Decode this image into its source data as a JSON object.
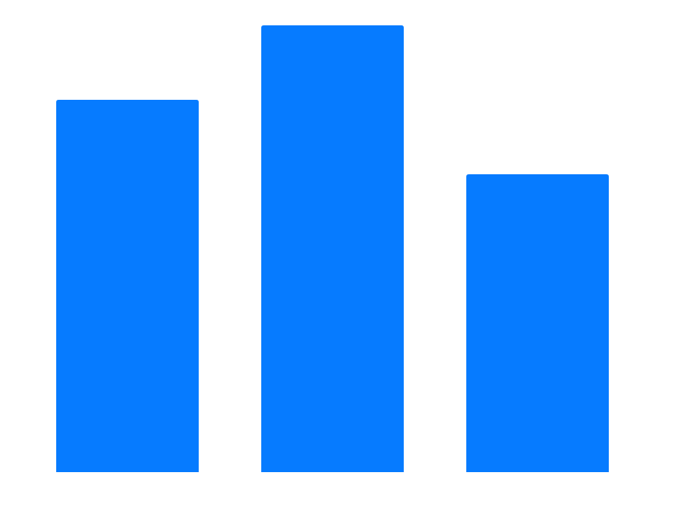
{
  "chart_data": {
    "type": "bar",
    "categories": [
      "",
      "",
      ""
    ],
    "values": [
      5,
      6,
      4
    ],
    "ylim": [
      0,
      6
    ],
    "title": "",
    "xlabel": "",
    "ylabel": "",
    "grid": false,
    "legend": "none",
    "colors": {
      "bar": "#067bff",
      "background": "#ffffff"
    }
  }
}
